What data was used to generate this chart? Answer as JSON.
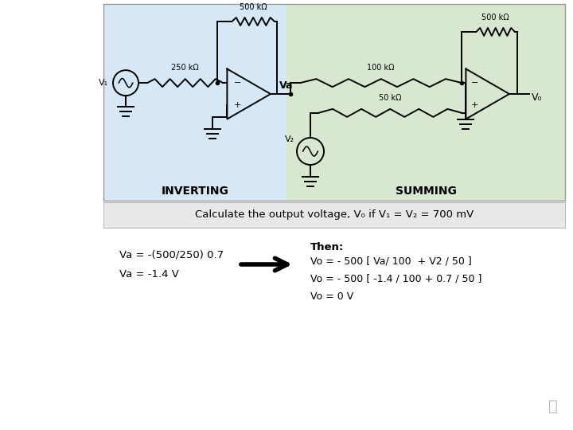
{
  "bg_color": "#ffffff",
  "circuit_image_bg_inverting": "#d6e8f5",
  "circuit_image_bg_summing": "#d8e8d0",
  "header_bar_color": "#e8e8e8",
  "header_text": "Calculate the output voltage, V₀ if V₁ = V₂ = 700 mV",
  "label_inverting": "INVERTING",
  "label_summing": "SUMMING",
  "va_calc_line1": "Va = -(500/250) 0.7",
  "va_calc_line2": "Va = -1.4 V",
  "then_label": "Then:",
  "vo_line1": "Vo = - 500 [ Va/ 100  + V2 / 50 ]",
  "vo_line2": "Vo = - 500 [ -1.4 / 100 + 0.7 / 50 ]",
  "vo_line3": "Vo = 0 V",
  "figsize": [
    7.2,
    5.4
  ],
  "dpi": 100
}
